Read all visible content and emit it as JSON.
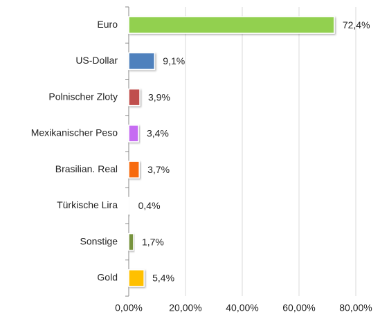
{
  "chart_data": {
    "type": "bar",
    "orientation": "horizontal",
    "categories": [
      "Euro",
      "US-Dollar",
      "Polnischer Zloty",
      "Mexikanischer Peso",
      "Brasilian. Real",
      "Türkische Lira",
      "Sonstige",
      "Gold"
    ],
    "values": [
      72.4,
      9.1,
      3.9,
      3.4,
      3.7,
      0.4,
      1.7,
      5.4
    ],
    "value_labels": [
      "72,4%",
      "9,1%",
      "3,9%",
      "3,4%",
      "3,7%",
      "0,4%",
      "1,7%",
      "5,4%"
    ],
    "colors": [
      "#92d050",
      "#4f81bd",
      "#c0504d",
      "#c66cf2",
      "#f76b0a",
      "#e0e0e0",
      "#77933c",
      "#ffc000"
    ],
    "xlim": [
      0,
      80
    ],
    "xticks": [
      {
        "value": 0,
        "label": "0,00%"
      },
      {
        "value": 20,
        "label": "20,00%"
      },
      {
        "value": 40,
        "label": "40,00%"
      },
      {
        "value": 60,
        "label": "60,00%"
      },
      {
        "value": 80,
        "label": "80,00%"
      }
    ],
    "grid": true
  }
}
